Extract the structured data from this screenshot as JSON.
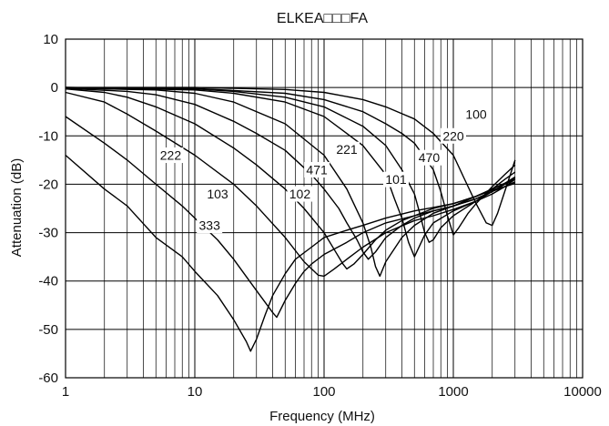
{
  "chart_data": {
    "type": "line",
    "title": "ELKEA□□□FA",
    "xlabel": "Frequency (MHz)",
    "ylabel": "Attenuation (dB)",
    "x_scale": "log",
    "xlim": [
      1,
      10000
    ],
    "ylim": [
      -60,
      10
    ],
    "x_ticks": [
      1,
      10,
      100,
      1000,
      10000
    ],
    "x_tick_labels": [
      "1",
      "10",
      "100",
      "1000",
      "10000"
    ],
    "y_ticks": [
      10,
      0,
      -10,
      -20,
      -30,
      -40,
      -50,
      -60
    ],
    "y_tick_labels": [
      "10",
      "0",
      "-10",
      "-20",
      "-30",
      "-40",
      "-50",
      "-60"
    ],
    "grid": true,
    "legend": "none",
    "line_color": "#000000",
    "series": [
      {
        "name": "333",
        "label_at": [
          13,
          -28.5
        ],
        "x": [
          1,
          2,
          3,
          5,
          8,
          10,
          15,
          20,
          25,
          27,
          30,
          35,
          40,
          50,
          60,
          80,
          100,
          150,
          200,
          300,
          500,
          700,
          1000,
          1500,
          2000,
          2500,
          3000
        ],
        "y": [
          -14,
          -21,
          -24.5,
          -31,
          -35,
          -38,
          -43,
          -48,
          -52.5,
          -54.5,
          -52,
          -47,
          -43,
          -38.5,
          -35.5,
          -33,
          -31,
          -29.5,
          -28.5,
          -27,
          -25.5,
          -24.8,
          -24,
          -22.5,
          -21.2,
          -20.5,
          -19.8
        ]
      },
      {
        "name": "103",
        "label_at": [
          15,
          -22
        ],
        "x": [
          1,
          2,
          3,
          5,
          8,
          10,
          15,
          20,
          30,
          40,
          43,
          50,
          60,
          70,
          80,
          100,
          150,
          200,
          300,
          500,
          700,
          1000,
          1500,
          2000,
          2500,
          3000
        ],
        "y": [
          -6,
          -11.5,
          -15,
          -20,
          -24.5,
          -27,
          -31.5,
          -35.5,
          -42,
          -46.5,
          -47.5,
          -44,
          -40.5,
          -38,
          -36.5,
          -34.5,
          -32,
          -30,
          -28,
          -26.5,
          -25.5,
          -24.5,
          -23,
          -21.5,
          -20.5,
          -19.5
        ]
      },
      {
        "name": "222",
        "label_at": [
          6.5,
          -14
        ],
        "x": [
          1,
          2,
          3,
          5,
          10,
          20,
          30,
          50,
          70,
          90,
          100,
          120,
          150,
          200,
          300,
          500,
          700,
          1000,
          1500,
          2000,
          2500,
          3000
        ],
        "y": [
          -1,
          -3,
          -5.5,
          -9,
          -14,
          -20,
          -24.5,
          -31,
          -36,
          -38.8,
          -39,
          -37.5,
          -35.5,
          -33,
          -30,
          -27.5,
          -26.5,
          -25.2,
          -23.5,
          -22,
          -20.5,
          -19
        ]
      },
      {
        "name": "102",
        "label_at": [
          65,
          -22
        ],
        "x": [
          1,
          2,
          3,
          5,
          10,
          20,
          30,
          50,
          70,
          100,
          120,
          140,
          150,
          170,
          200,
          250,
          300,
          400,
          500,
          700,
          1000,
          1500,
          2000,
          2500,
          3000
        ],
        "y": [
          -0.3,
          -1,
          -2,
          -4,
          -7.5,
          -12.5,
          -16,
          -21,
          -25,
          -30,
          -33.5,
          -36.5,
          -37.5,
          -36.5,
          -34.5,
          -31.5,
          -29.5,
          -27.5,
          -26.5,
          -25,
          -24,
          -22.5,
          -21,
          -19.8,
          -18.8
        ]
      },
      {
        "name": "471",
        "label_at": [
          88,
          -17
        ],
        "x": [
          1,
          3,
          5,
          10,
          20,
          30,
          50,
          80,
          100,
          130,
          150,
          180,
          200,
          220,
          250,
          300,
          400,
          500,
          700,
          1000,
          1500,
          2000,
          2500,
          3000
        ],
        "y": [
          -0.2,
          -0.8,
          -1.5,
          -3.5,
          -7,
          -9.5,
          -13,
          -18,
          -21,
          -25,
          -28,
          -31.5,
          -34,
          -35.5,
          -34,
          -31,
          -28.5,
          -27,
          -25.5,
          -24.5,
          -23,
          -21.5,
          -20,
          -19
        ]
      },
      {
        "name": "221",
        "label_at": [
          150,
          -12.8
        ],
        "x": [
          1,
          5,
          10,
          20,
          50,
          100,
          150,
          200,
          230,
          250,
          270,
          300,
          400,
          500,
          700,
          1000,
          1500,
          2000,
          2500,
          3000
        ],
        "y": [
          -0.1,
          -0.5,
          -1.2,
          -3,
          -7.5,
          -14,
          -21,
          -28,
          -33,
          -37,
          -39,
          -36,
          -31,
          -28.5,
          -26,
          -24.5,
          -22.5,
          -21,
          -19.8,
          -18.5
        ]
      },
      {
        "name": "101",
        "label_at": [
          360,
          -19
        ],
        "x": [
          1,
          10,
          20,
          50,
          100,
          200,
          300,
          350,
          400,
          450,
          500,
          600,
          700,
          1000,
          1500,
          2000,
          2500,
          3000
        ],
        "y": [
          0,
          -0.5,
          -1.2,
          -3,
          -6,
          -12,
          -18,
          -23,
          -27,
          -32,
          -35,
          -30.5,
          -28,
          -25.5,
          -23.5,
          -21.5,
          -20,
          -18.5
        ]
      },
      {
        "name": "470",
        "label_at": [
          650,
          -14.5
        ],
        "x": [
          1,
          10,
          20,
          50,
          100,
          200,
          300,
          400,
          500,
          550,
          600,
          650,
          700,
          800,
          1000,
          1500,
          2000,
          2500,
          3000
        ],
        "y": [
          0,
          -0.3,
          -0.8,
          -2,
          -4,
          -8,
          -12,
          -17,
          -22,
          -26,
          -30,
          -32,
          -31.5,
          -29,
          -26.5,
          -23.5,
          -21,
          -19,
          -17.5
        ]
      },
      {
        "name": "220",
        "label_at": [
          1000,
          -10
        ],
        "x": [
          1,
          10,
          50,
          100,
          200,
          300,
          400,
          500,
          700,
          800,
          900,
          1000,
          1100,
          1300,
          1500,
          2000,
          2500,
          3000
        ],
        "y": [
          0,
          -0.2,
          -1.2,
          -2.5,
          -5,
          -7.5,
          -9.5,
          -11.5,
          -17,
          -21.5,
          -26.5,
          -30.5,
          -29,
          -26,
          -24,
          -20.5,
          -18,
          -16
        ]
      },
      {
        "name": "100",
        "label_at": [
          1500,
          -5.5
        ],
        "x": [
          1,
          10,
          50,
          100,
          200,
          300,
          500,
          700,
          1000,
          1200,
          1500,
          1800,
          2000,
          2200,
          2500,
          3000
        ],
        "y": [
          0,
          0,
          -0.4,
          -1,
          -2.5,
          -4,
          -6.5,
          -9.5,
          -14,
          -18.5,
          -24,
          -28,
          -28.5,
          -26,
          -21.5,
          -15
        ]
      }
    ]
  }
}
